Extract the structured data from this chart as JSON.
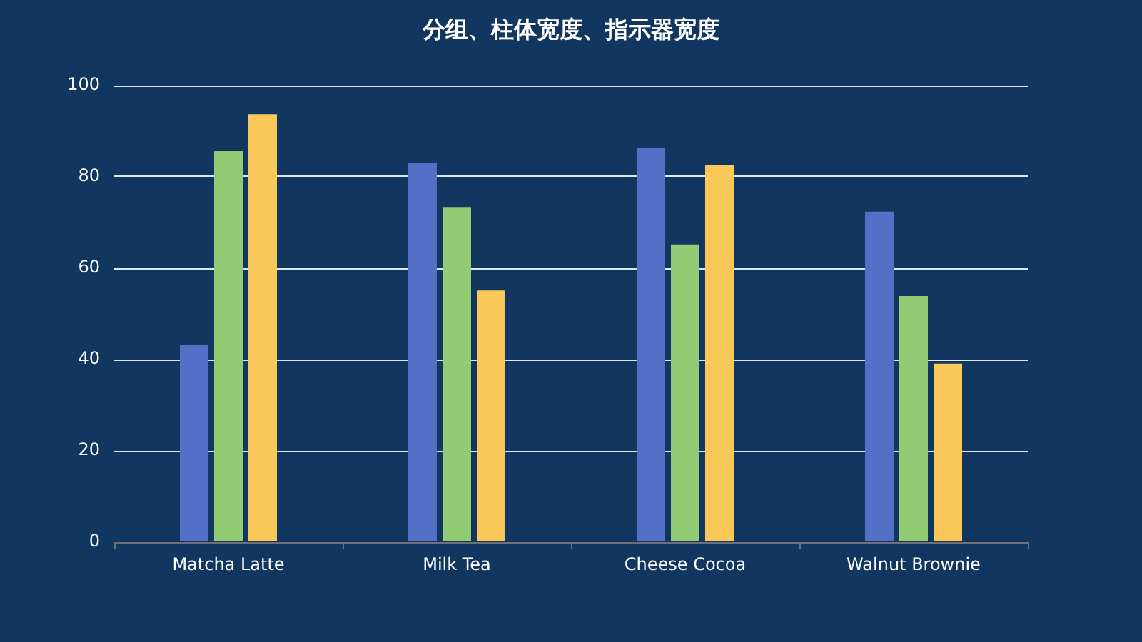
{
  "chart_data": {
    "type": "bar",
    "title": "分组、柱体宽度、指示器宽度",
    "categories": [
      "Matcha Latte",
      "Milk Tea",
      "Cheese Cocoa",
      "Walnut Brownie"
    ],
    "series": [
      {
        "color": "#5470c6",
        "values": [
          43.3,
          83.1,
          86.4,
          72.4
        ]
      },
      {
        "color": "#91cc75",
        "values": [
          85.8,
          73.4,
          65.2,
          53.9
        ]
      },
      {
        "color": "#fac858",
        "values": [
          93.7,
          55.1,
          82.5,
          39.1
        ]
      }
    ],
    "ylim": [
      0,
      100
    ],
    "yticks": [
      0,
      20,
      40,
      60,
      80,
      100
    ],
    "grid": "y"
  }
}
